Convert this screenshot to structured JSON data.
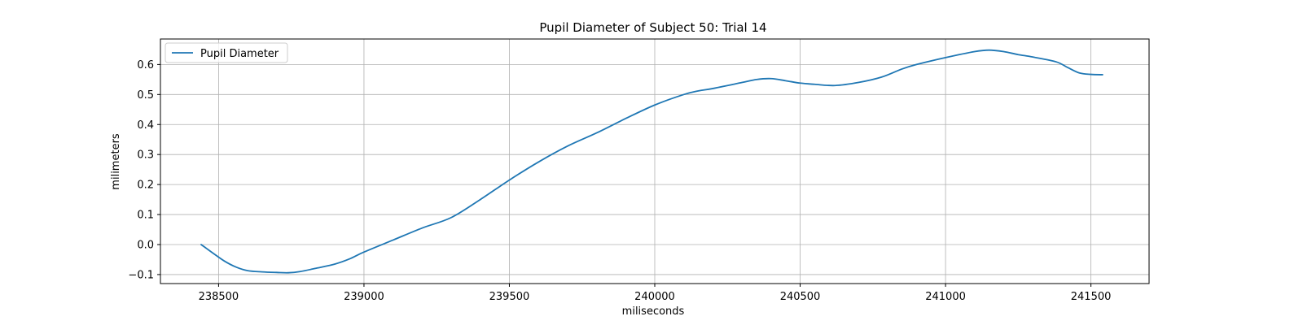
{
  "chart_data": {
    "type": "line",
    "title": "Pupil Diameter of Subject 50: Trial 14",
    "xlabel": "miliseconds",
    "ylabel": "milimeters",
    "xlim": [
      238300,
      241700
    ],
    "ylim": [
      -0.13,
      0.685
    ],
    "x_ticks": [
      238500,
      239000,
      239500,
      240000,
      240500,
      241000,
      241500
    ],
    "y_ticks": [
      -0.1,
      0.0,
      0.1,
      0.2,
      0.3,
      0.4,
      0.5,
      0.6
    ],
    "x_tick_labels": [
      "238500",
      "239000",
      "239500",
      "240000",
      "240500",
      "241000",
      "241500"
    ],
    "y_tick_labels": [
      "−0.1",
      "0.0",
      "0.1",
      "0.2",
      "0.3",
      "0.4",
      "0.5",
      "0.6"
    ],
    "grid": true,
    "legend_position": "upper-left",
    "series": [
      {
        "name": "Pupil Diameter",
        "color": "#1f77b4",
        "x": [
          238440,
          238480,
          238520,
          238560,
          238600,
          238650,
          238700,
          238740,
          238780,
          238840,
          238900,
          238950,
          239000,
          239100,
          239200,
          239300,
          239400,
          239500,
          239600,
          239700,
          239800,
          239900,
          240000,
          240100,
          240150,
          240200,
          240300,
          240350,
          240400,
          240450,
          240500,
          240550,
          240620,
          240700,
          240780,
          240850,
          240900,
          241000,
          241100,
          241150,
          241200,
          241250,
          241300,
          241380,
          241420,
          241460,
          241500,
          241540
        ],
        "y": [
          0.0,
          -0.028,
          -0.055,
          -0.075,
          -0.087,
          -0.091,
          -0.093,
          -0.094,
          -0.09,
          -0.078,
          -0.065,
          -0.048,
          -0.025,
          0.015,
          0.055,
          0.09,
          0.15,
          0.215,
          0.275,
          0.328,
          0.372,
          0.42,
          0.465,
          0.5,
          0.512,
          0.52,
          0.54,
          0.55,
          0.553,
          0.546,
          0.538,
          0.534,
          0.53,
          0.54,
          0.558,
          0.585,
          0.6,
          0.623,
          0.643,
          0.648,
          0.643,
          0.633,
          0.625,
          0.609,
          0.59,
          0.572,
          0.567,
          0.566
        ]
      }
    ]
  }
}
